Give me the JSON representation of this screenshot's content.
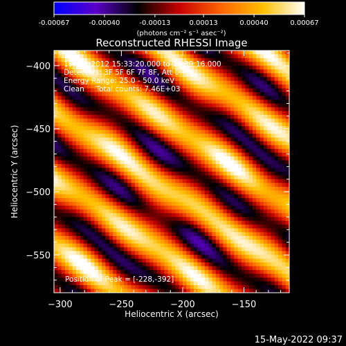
{
  "colorbar": {
    "tick_labels": [
      "-0.00067",
      "-0.00040",
      "-0.00013",
      "0.00013",
      "0.00040",
      "0.00067"
    ],
    "tick_values": [
      -0.00067,
      -0.0004,
      -0.00013,
      0.00013,
      0.0004,
      0.00067
    ],
    "range": [
      -0.00067,
      0.00067
    ],
    "units": "(photons cm⁻² s⁻¹ asec⁻²)",
    "colormap": [
      "#0000ff",
      "#5a00c8",
      "#000000",
      "#c80000",
      "#ff6400",
      "#ffc000",
      "#ffffff"
    ]
  },
  "chart_data": {
    "type": "heatmap",
    "title": "Reconstructed RHESSI Image",
    "xlabel": "Heliocentric X (arcsec)",
    "ylabel": "Heliocentric Y (arcsec)",
    "xlim": [
      -305,
      -113
    ],
    "ylim": [
      -580,
      -388
    ],
    "x_ticks": [
      -300,
      -250,
      -200,
      -150
    ],
    "y_ticks": [
      -400,
      -450,
      -500,
      -550
    ],
    "x_tick_labels": [
      "−300",
      "−250",
      "−200",
      "−150"
    ],
    "y_tick_labels": [
      "−400",
      "−450",
      "−500",
      "−550"
    ],
    "grid": false,
    "pattern": "diagonal stripes descending left-to-right, alternating emission (red/yellow) and negative (blue/purple) bands",
    "peak_position": [
      -228,
      -392
    ],
    "annotations": [
      "19-Oct-2012 15:33:20.000 to 15:39:16.000",
      "Detectors: 3F 5F 6F 7F 8F, Att 0",
      "Energy Range: 25.0 - 50.0 keV",
      "Clean     Total counts: 7.46E+03",
      "Position of Peak = [-228,-392]"
    ]
  },
  "timestamp": "15-May-2022 09:37"
}
